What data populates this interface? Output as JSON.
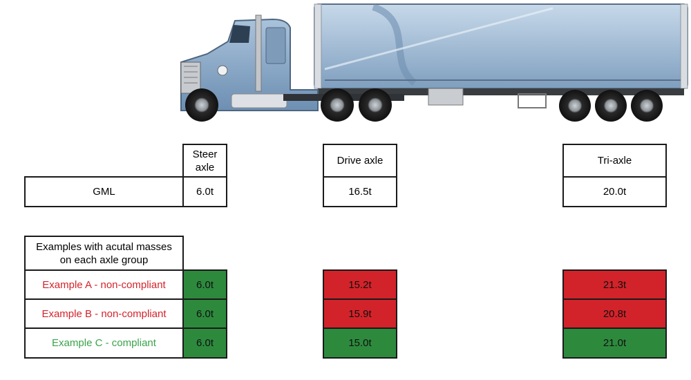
{
  "headers": {
    "steer": "Steer axle",
    "drive": "Drive axle",
    "tri": "Tri-axle"
  },
  "gml": {
    "label": "GML",
    "steer": "6.0t",
    "drive": "16.5t",
    "tri": "20.0t"
  },
  "examples_header": "Examples with acutal masses on each axle group",
  "examples": [
    {
      "label": "Example A - non-compliant",
      "status": "non-compliant",
      "steer": "6.0t",
      "drive": "15.2t",
      "tri": "21.3t"
    },
    {
      "label": "Example B - non-compliant",
      "status": "non-compliant",
      "steer": "6.0t",
      "drive": "15.9t",
      "tri": "20.8t"
    },
    {
      "label": "Example C - compliant",
      "status": "compliant",
      "steer": "6.0t",
      "drive": "15.0t",
      "tri": "21.0t"
    }
  ],
  "colors": {
    "non_compliant_fill": "#d3232a",
    "compliant_fill": "#2d8a3d",
    "non_compliant_text": "#d3232a",
    "compliant_text": "#3aa34a",
    "truck_blue": "#9db8d4"
  },
  "icons": {
    "truck": "semi-trailer-truck-icon"
  }
}
